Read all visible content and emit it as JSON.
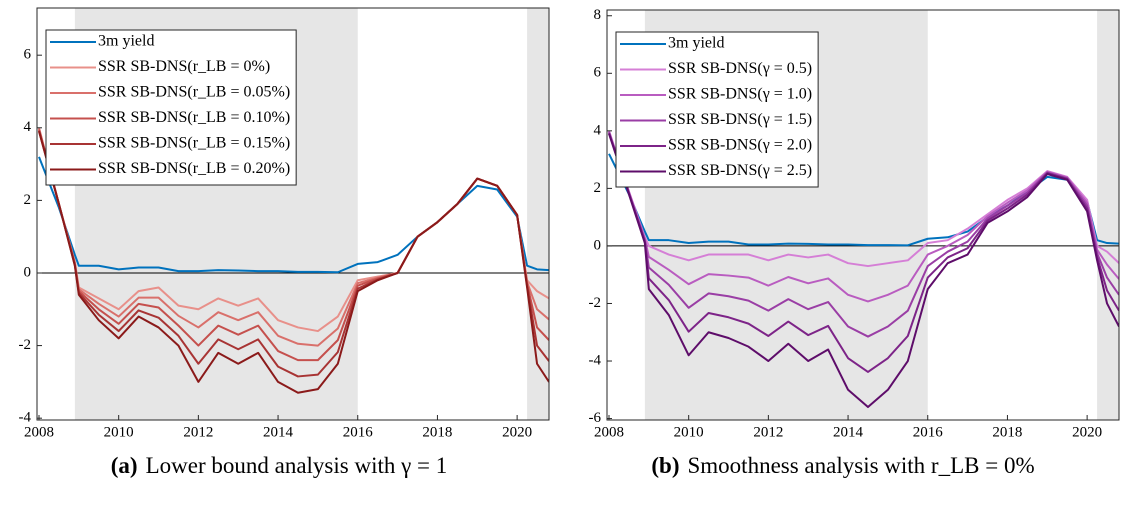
{
  "chart_data": [
    {
      "type": "line",
      "caption_label": "(a)",
      "caption": "Lower bound analysis with γ = 1",
      "xlim": [
        2007.95,
        2020.8
      ],
      "ylim": [
        -4.05,
        7.3
      ],
      "xticks": [
        2008,
        2010,
        2012,
        2014,
        2016,
        2018,
        2020
      ],
      "yticks": [
        -4,
        -2,
        0,
        2,
        4,
        6
      ],
      "hline": 0,
      "shaded": [
        [
          2008.9,
          2016.0
        ],
        [
          2020.25,
          2020.8
        ]
      ],
      "legend": "upper left",
      "x": [
        2008,
        2008.5,
        2008.9,
        2009.0,
        2009.5,
        2010,
        2010.5,
        2011,
        2011.5,
        2012,
        2012.5,
        2013,
        2013.5,
        2014,
        2014.5,
        2015,
        2015.5,
        2016,
        2016.5,
        2017,
        2017.5,
        2018,
        2018.5,
        2019,
        2019.5,
        2020,
        2020.25,
        2020.5,
        2020.8
      ],
      "series": [
        {
          "name": "3m yield",
          "color": "#0072bd",
          "values": [
            3.2,
            1.8,
            0.5,
            0.2,
            0.2,
            0.1,
            0.15,
            0.15,
            0.05,
            0.05,
            0.08,
            0.07,
            0.05,
            0.05,
            0.03,
            0.03,
            0.02,
            0.25,
            0.3,
            0.5,
            1.0,
            1.4,
            1.9,
            2.4,
            2.3,
            1.55,
            0.2,
            0.1,
            0.08
          ]
        },
        {
          "name": "SSR SB-DNS(r_LB = 0%)",
          "color": "#e8908a",
          "values": [
            4.0,
            1.9,
            0.3,
            -0.4,
            -0.7,
            -1.0,
            -0.5,
            -0.4,
            -0.9,
            -1.0,
            -0.7,
            -0.9,
            -0.7,
            -1.3,
            -1.5,
            -1.6,
            -1.2,
            -0.2,
            -0.1,
            0.0,
            1.0,
            1.4,
            1.9,
            2.6,
            2.4,
            1.6,
            -0.2,
            -0.5,
            -0.7
          ]
        },
        {
          "name": "SSR SB-DNS(r_LB = 0.05%)",
          "color": "#d9706b",
          "values": [
            3.98,
            1.9,
            0.28,
            -0.45,
            -0.85,
            -1.2,
            -0.68,
            -0.68,
            -1.18,
            -1.5,
            -1.08,
            -1.3,
            -1.08,
            -1.73,
            -1.95,
            -2.0,
            -1.53,
            -0.28,
            -0.13,
            0.0,
            1.0,
            1.4,
            1.9,
            2.6,
            2.4,
            1.6,
            -0.25,
            -1.0,
            -1.28
          ]
        },
        {
          "name": "SSR SB-DNS(r_LB = 0.10%)",
          "color": "#c5504d",
          "values": [
            3.95,
            1.9,
            0.25,
            -0.5,
            -1.0,
            -1.4,
            -0.85,
            -0.95,
            -1.45,
            -2.0,
            -1.45,
            -1.7,
            -1.45,
            -2.15,
            -2.4,
            -2.4,
            -1.85,
            -0.35,
            -0.15,
            0.0,
            1.0,
            1.4,
            1.9,
            2.6,
            2.4,
            1.6,
            -0.3,
            -1.5,
            -1.85
          ]
        },
        {
          "name": "SSR SB-DNS(r_LB = 0.15%)",
          "color": "#a83434",
          "values": [
            3.92,
            1.9,
            0.22,
            -0.55,
            -1.15,
            -1.6,
            -1.03,
            -1.23,
            -1.73,
            -2.5,
            -1.83,
            -2.1,
            -1.83,
            -2.58,
            -2.85,
            -2.8,
            -2.18,
            -0.43,
            -0.18,
            0.0,
            1.0,
            1.4,
            1.9,
            2.6,
            2.4,
            1.6,
            -0.35,
            -2.0,
            -2.43
          ]
        },
        {
          "name": "SSR SB-DNS(r_LB = 0.20%)",
          "color": "#8b1a1a",
          "values": [
            3.9,
            1.9,
            0.2,
            -0.6,
            -1.3,
            -1.8,
            -1.2,
            -1.5,
            -2.0,
            -3.0,
            -2.2,
            -2.5,
            -2.2,
            -3.0,
            -3.3,
            -3.2,
            -2.5,
            -0.5,
            -0.2,
            0.0,
            1.0,
            1.4,
            1.9,
            2.6,
            2.4,
            1.6,
            -0.4,
            -2.5,
            -3.0
          ]
        }
      ]
    },
    {
      "type": "line",
      "caption_label": "(b)",
      "caption": "Smoothness analysis with r_LB = 0%",
      "xlim": [
        2007.95,
        2020.8
      ],
      "ylim": [
        -6.05,
        8.2
      ],
      "xticks": [
        2008,
        2010,
        2012,
        2014,
        2016,
        2018,
        2020
      ],
      "yticks": [
        -6,
        -4,
        -2,
        0,
        2,
        4,
        6,
        8
      ],
      "hline": 0,
      "shaded": [
        [
          2008.9,
          2016.0
        ],
        [
          2020.25,
          2020.8
        ]
      ],
      "legend": "upper left",
      "x": [
        2008,
        2008.5,
        2008.9,
        2009.0,
        2009.5,
        2010,
        2010.5,
        2011,
        2011.5,
        2012,
        2012.5,
        2013,
        2013.5,
        2014,
        2014.5,
        2015,
        2015.5,
        2016,
        2016.5,
        2017,
        2017.5,
        2018,
        2018.5,
        2019,
        2019.5,
        2020,
        2020.25,
        2020.5,
        2020.8
      ],
      "series": [
        {
          "name": "3m yield",
          "color": "#0072bd",
          "values": [
            3.2,
            1.8,
            0.5,
            0.2,
            0.2,
            0.1,
            0.15,
            0.15,
            0.05,
            0.05,
            0.08,
            0.07,
            0.05,
            0.05,
            0.03,
            0.03,
            0.02,
            0.25,
            0.3,
            0.5,
            1.0,
            1.4,
            1.9,
            2.4,
            2.3,
            1.55,
            0.2,
            0.1,
            0.08
          ]
        },
        {
          "name": "SSR SB-DNS(γ = 0.5)",
          "color": "#d57fd6",
          "values": [
            4.0,
            1.9,
            0.3,
            0.0,
            -0.3,
            -0.5,
            -0.3,
            -0.3,
            -0.3,
            -0.5,
            -0.3,
            -0.4,
            -0.3,
            -0.6,
            -0.7,
            -0.6,
            -0.5,
            0.1,
            0.2,
            0.6,
            1.1,
            1.6,
            2.0,
            2.6,
            2.4,
            1.6,
            0.0,
            -0.2,
            -0.6
          ]
        },
        {
          "name": "SSR SB-DNS(γ = 1.0)",
          "color": "#b95cc0",
          "values": [
            3.98,
            1.88,
            0.25,
            -0.38,
            -0.83,
            -1.33,
            -0.98,
            -1.03,
            -1.1,
            -1.38,
            -1.08,
            -1.3,
            -1.13,
            -1.7,
            -1.93,
            -1.7,
            -1.38,
            -0.3,
            0.0,
            0.38,
            1.03,
            1.5,
            1.93,
            2.58,
            2.38,
            1.5,
            -0.13,
            -0.65,
            -1.15
          ]
        },
        {
          "name": "SSR SB-DNS(γ = 1.5)",
          "color": "#9a3ea5",
          "values": [
            3.95,
            1.85,
            0.2,
            -0.75,
            -1.35,
            -2.15,
            -1.65,
            -1.75,
            -1.9,
            -2.25,
            -1.85,
            -2.2,
            -1.95,
            -2.8,
            -3.15,
            -2.8,
            -2.25,
            -0.7,
            -0.2,
            0.15,
            0.95,
            1.4,
            1.85,
            2.55,
            2.35,
            1.4,
            -0.25,
            -1.1,
            -1.7
          ]
        },
        {
          "name": "SSR SB-DNS(γ = 2.0)",
          "color": "#7d2488",
          "values": [
            3.92,
            1.83,
            0.15,
            -1.13,
            -1.88,
            -2.98,
            -2.33,
            -2.48,
            -2.7,
            -3.13,
            -2.63,
            -3.1,
            -2.78,
            -3.9,
            -4.38,
            -3.9,
            -3.13,
            -1.1,
            -0.4,
            -0.08,
            0.88,
            1.3,
            1.78,
            2.53,
            2.33,
            1.3,
            -0.38,
            -1.55,
            -2.25
          ]
        },
        {
          "name": "SSR SB-DNS(γ = 2.5)",
          "color": "#5e0d6a",
          "values": [
            3.9,
            1.8,
            0.1,
            -1.5,
            -2.4,
            -3.8,
            -3.0,
            -3.2,
            -3.5,
            -4.0,
            -3.4,
            -4.0,
            -3.6,
            -5.0,
            -5.6,
            -5.0,
            -4.0,
            -1.5,
            -0.6,
            -0.3,
            0.8,
            1.2,
            1.7,
            2.5,
            2.3,
            1.2,
            -0.5,
            -2.0,
            -2.8
          ]
        }
      ]
    }
  ]
}
